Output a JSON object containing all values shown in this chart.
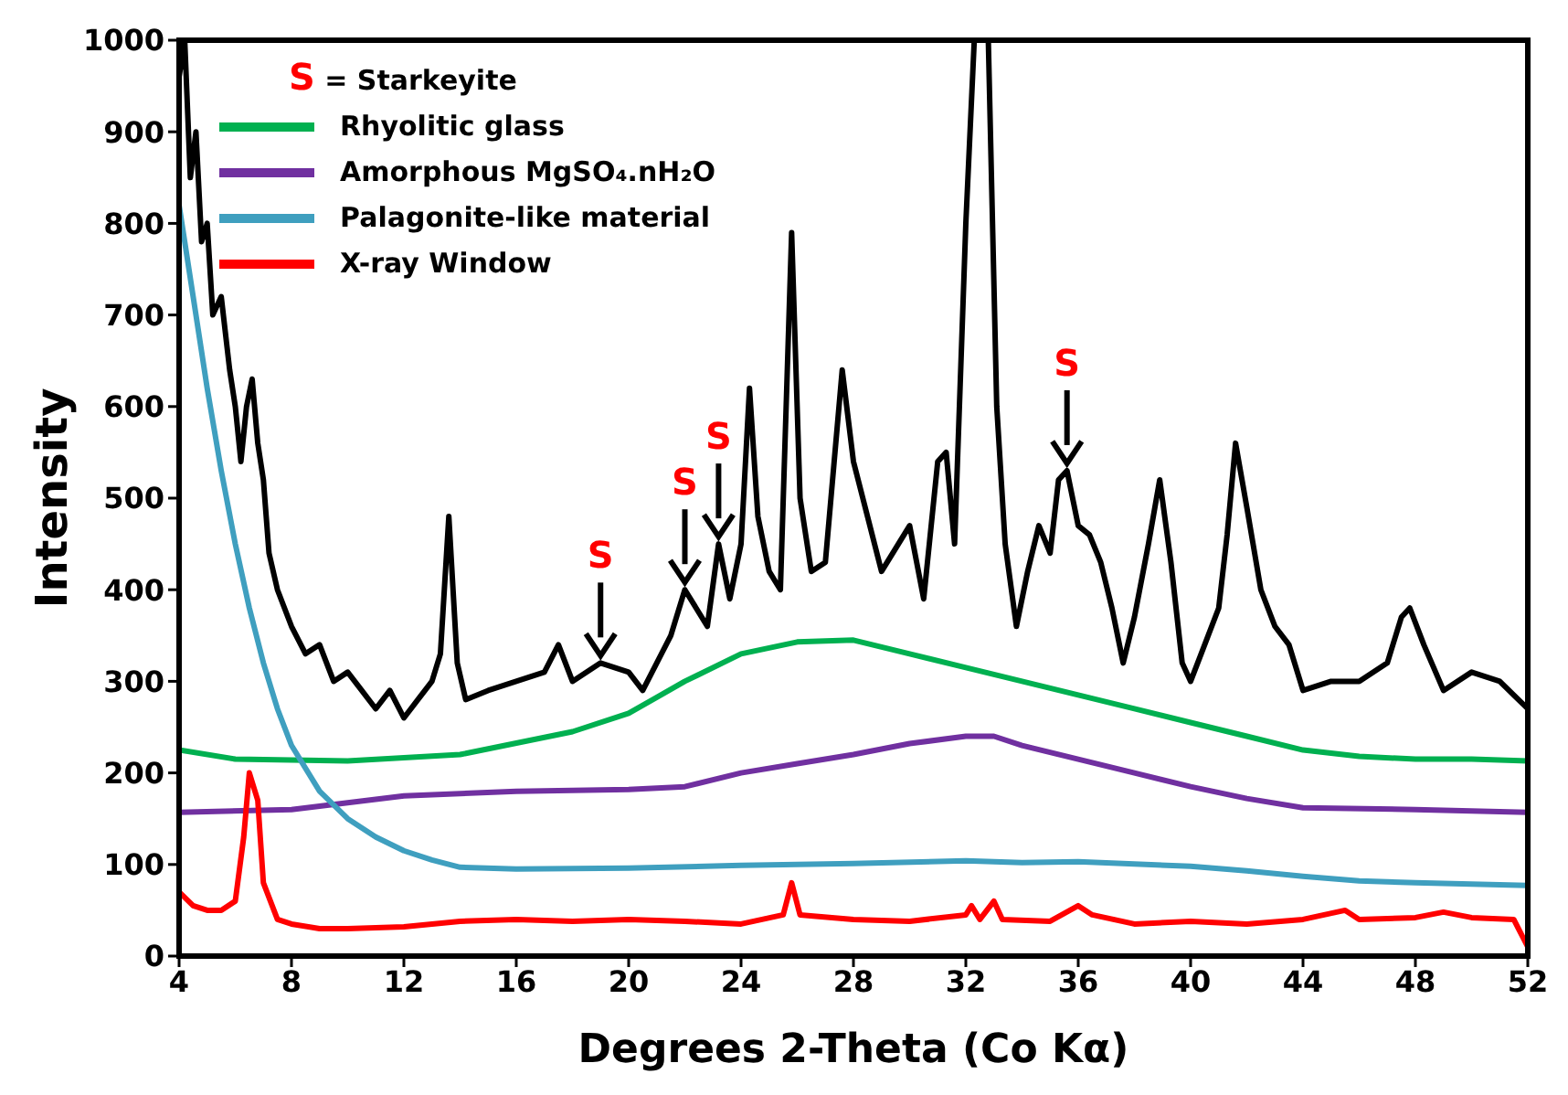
{
  "chart_data": {
    "type": "line",
    "xlabel": "Degrees 2-Theta (Co Kα)",
    "ylabel": "Intensity",
    "xlim": [
      4,
      52
    ],
    "ylim": [
      0,
      1000
    ],
    "xticks": [
      4,
      8,
      12,
      16,
      20,
      24,
      28,
      32,
      36,
      40,
      44,
      48,
      52
    ],
    "yticks": [
      0,
      100,
      200,
      300,
      400,
      500,
      600,
      700,
      800,
      900,
      1000
    ],
    "legend": "top left",
    "marker": "none",
    "line_style": "solid",
    "annotations": [
      "S = Starkeyite",
      {
        "text": "S",
        "x": 19,
        "y": 320
      },
      {
        "text": "S",
        "x": 22,
        "y": 400
      },
      {
        "text": "S",
        "x": 23.2,
        "y": 450
      },
      {
        "text": "S",
        "x": 35.6,
        "y": 530
      }
    ],
    "series": [
      {
        "color": "#000000",
        "x": [
          4.0,
          4.2,
          4.4,
          4.6,
          4.8,
          5.0,
          5.2,
          5.5,
          5.8,
          6.0,
          6.2,
          6.4,
          6.6,
          6.8,
          7.0,
          7.2,
          7.5,
          8.0,
          8.5,
          9.0,
          9.5,
          10,
          10.5,
          11,
          11.5,
          12,
          12.5,
          13,
          13.3,
          13.6,
          13.9,
          14.2,
          15,
          16,
          17,
          17.5,
          18,
          19,
          20,
          20.5,
          21,
          21.5,
          22,
          22.4,
          22.8,
          23.2,
          23.6,
          24,
          24.3,
          24.6,
          25,
          25.4,
          25.8,
          26.1,
          26.5,
          27,
          27.6,
          28,
          28.5,
          29,
          29.6,
          30,
          30.5,
          31,
          31.3,
          31.6,
          32,
          32.3,
          32.8,
          33.1,
          33.4,
          33.8,
          34.2,
          34.6,
          35,
          35.3,
          35.6,
          36,
          36.4,
          36.8,
          37.2,
          37.6,
          38,
          38.5,
          38.9,
          39.3,
          39.7,
          40,
          40.5,
          41,
          41.3,
          41.6,
          42,
          42.5,
          43,
          43.5,
          44,
          45,
          46,
          47,
          47.5,
          47.8,
          48.3,
          49,
          50,
          51,
          52
        ],
        "values": [
          960,
          1000,
          850,
          900,
          780,
          800,
          700,
          720,
          640,
          600,
          540,
          600,
          630,
          560,
          520,
          440,
          400,
          360,
          330,
          340,
          300,
          310,
          290,
          270,
          290,
          260,
          280,
          300,
          330,
          480,
          320,
          280,
          290,
          300,
          310,
          340,
          300,
          320,
          310,
          290,
          320,
          350,
          400,
          380,
          360,
          450,
          390,
          450,
          620,
          480,
          420,
          400,
          790,
          500,
          420,
          430,
          640,
          540,
          480,
          420,
          450,
          470,
          390,
          540,
          550,
          450,
          800,
          1000,
          1000,
          600,
          450,
          360,
          420,
          470,
          440,
          520,
          530,
          470,
          460,
          430,
          380,
          320,
          370,
          450,
          520,
          430,
          320,
          300,
          340,
          380,
          460,
          560,
          490,
          400,
          360,
          340,
          290,
          300,
          300,
          320,
          370,
          380,
          340,
          290,
          310,
          300,
          270
        ]
      },
      {
        "name": "Rhyolitic glass",
        "color": "#00b050",
        "x": [
          4,
          6,
          10,
          14,
          18,
          20,
          22,
          24,
          26,
          28,
          30,
          32,
          34,
          36,
          38,
          40,
          42,
          44,
          46,
          48,
          50,
          52
        ],
        "values": [
          225,
          215,
          213,
          220,
          245,
          265,
          300,
          330,
          343,
          345,
          330,
          315,
          300,
          285,
          270,
          255,
          240,
          225,
          218,
          215,
          215,
          213
        ]
      },
      {
        "name": "Amorphous MgSO₄.nH₂O",
        "color": "#7030a0",
        "x": [
          4,
          8,
          12,
          16,
          20,
          22,
          24,
          26,
          28,
          30,
          32,
          33,
          34,
          36,
          38,
          40,
          42,
          44,
          48,
          52
        ],
        "values": [
          157,
          160,
          175,
          180,
          182,
          185,
          200,
          210,
          220,
          232,
          240,
          240,
          230,
          215,
          200,
          185,
          172,
          162,
          160,
          157
        ]
      },
      {
        "name": "Palagonite-like material",
        "color": "#3f9fbf",
        "x": [
          4,
          4.5,
          5,
          5.5,
          6,
          6.5,
          7,
          7.5,
          8,
          9,
          10,
          11,
          12,
          13,
          14,
          16,
          20,
          24,
          28,
          32,
          34,
          36,
          40,
          42,
          44,
          46,
          48,
          52
        ],
        "values": [
          820,
          720,
          620,
          530,
          450,
          380,
          320,
          270,
          230,
          180,
          150,
          130,
          115,
          105,
          97,
          95,
          96,
          99,
          101,
          104,
          102,
          103,
          98,
          93,
          87,
          82,
          80,
          77
        ]
      },
      {
        "name": "X-ray Window",
        "color": "#ff0000",
        "x": [
          4,
          4.5,
          5,
          5.5,
          6,
          6.3,
          6.5,
          6.8,
          7,
          7.5,
          8,
          9,
          10,
          12,
          14,
          16,
          18,
          20,
          22,
          24,
          25.5,
          25.8,
          26.1,
          28,
          30,
          32,
          32.2,
          32.5,
          33,
          33.3,
          35,
          36,
          36.5,
          38,
          40,
          42,
          44,
          45.5,
          46,
          48,
          49,
          50,
          51.5,
          52
        ],
        "values": [
          70,
          55,
          50,
          50,
          60,
          130,
          200,
          170,
          80,
          40,
          35,
          30,
          30,
          32,
          38,
          40,
          38,
          40,
          38,
          35,
          45,
          80,
          45,
          40,
          38,
          45,
          55,
          40,
          60,
          40,
          38,
          55,
          45,
          35,
          38,
          35,
          40,
          50,
          40,
          42,
          48,
          42,
          40,
          10
        ]
      }
    ]
  }
}
